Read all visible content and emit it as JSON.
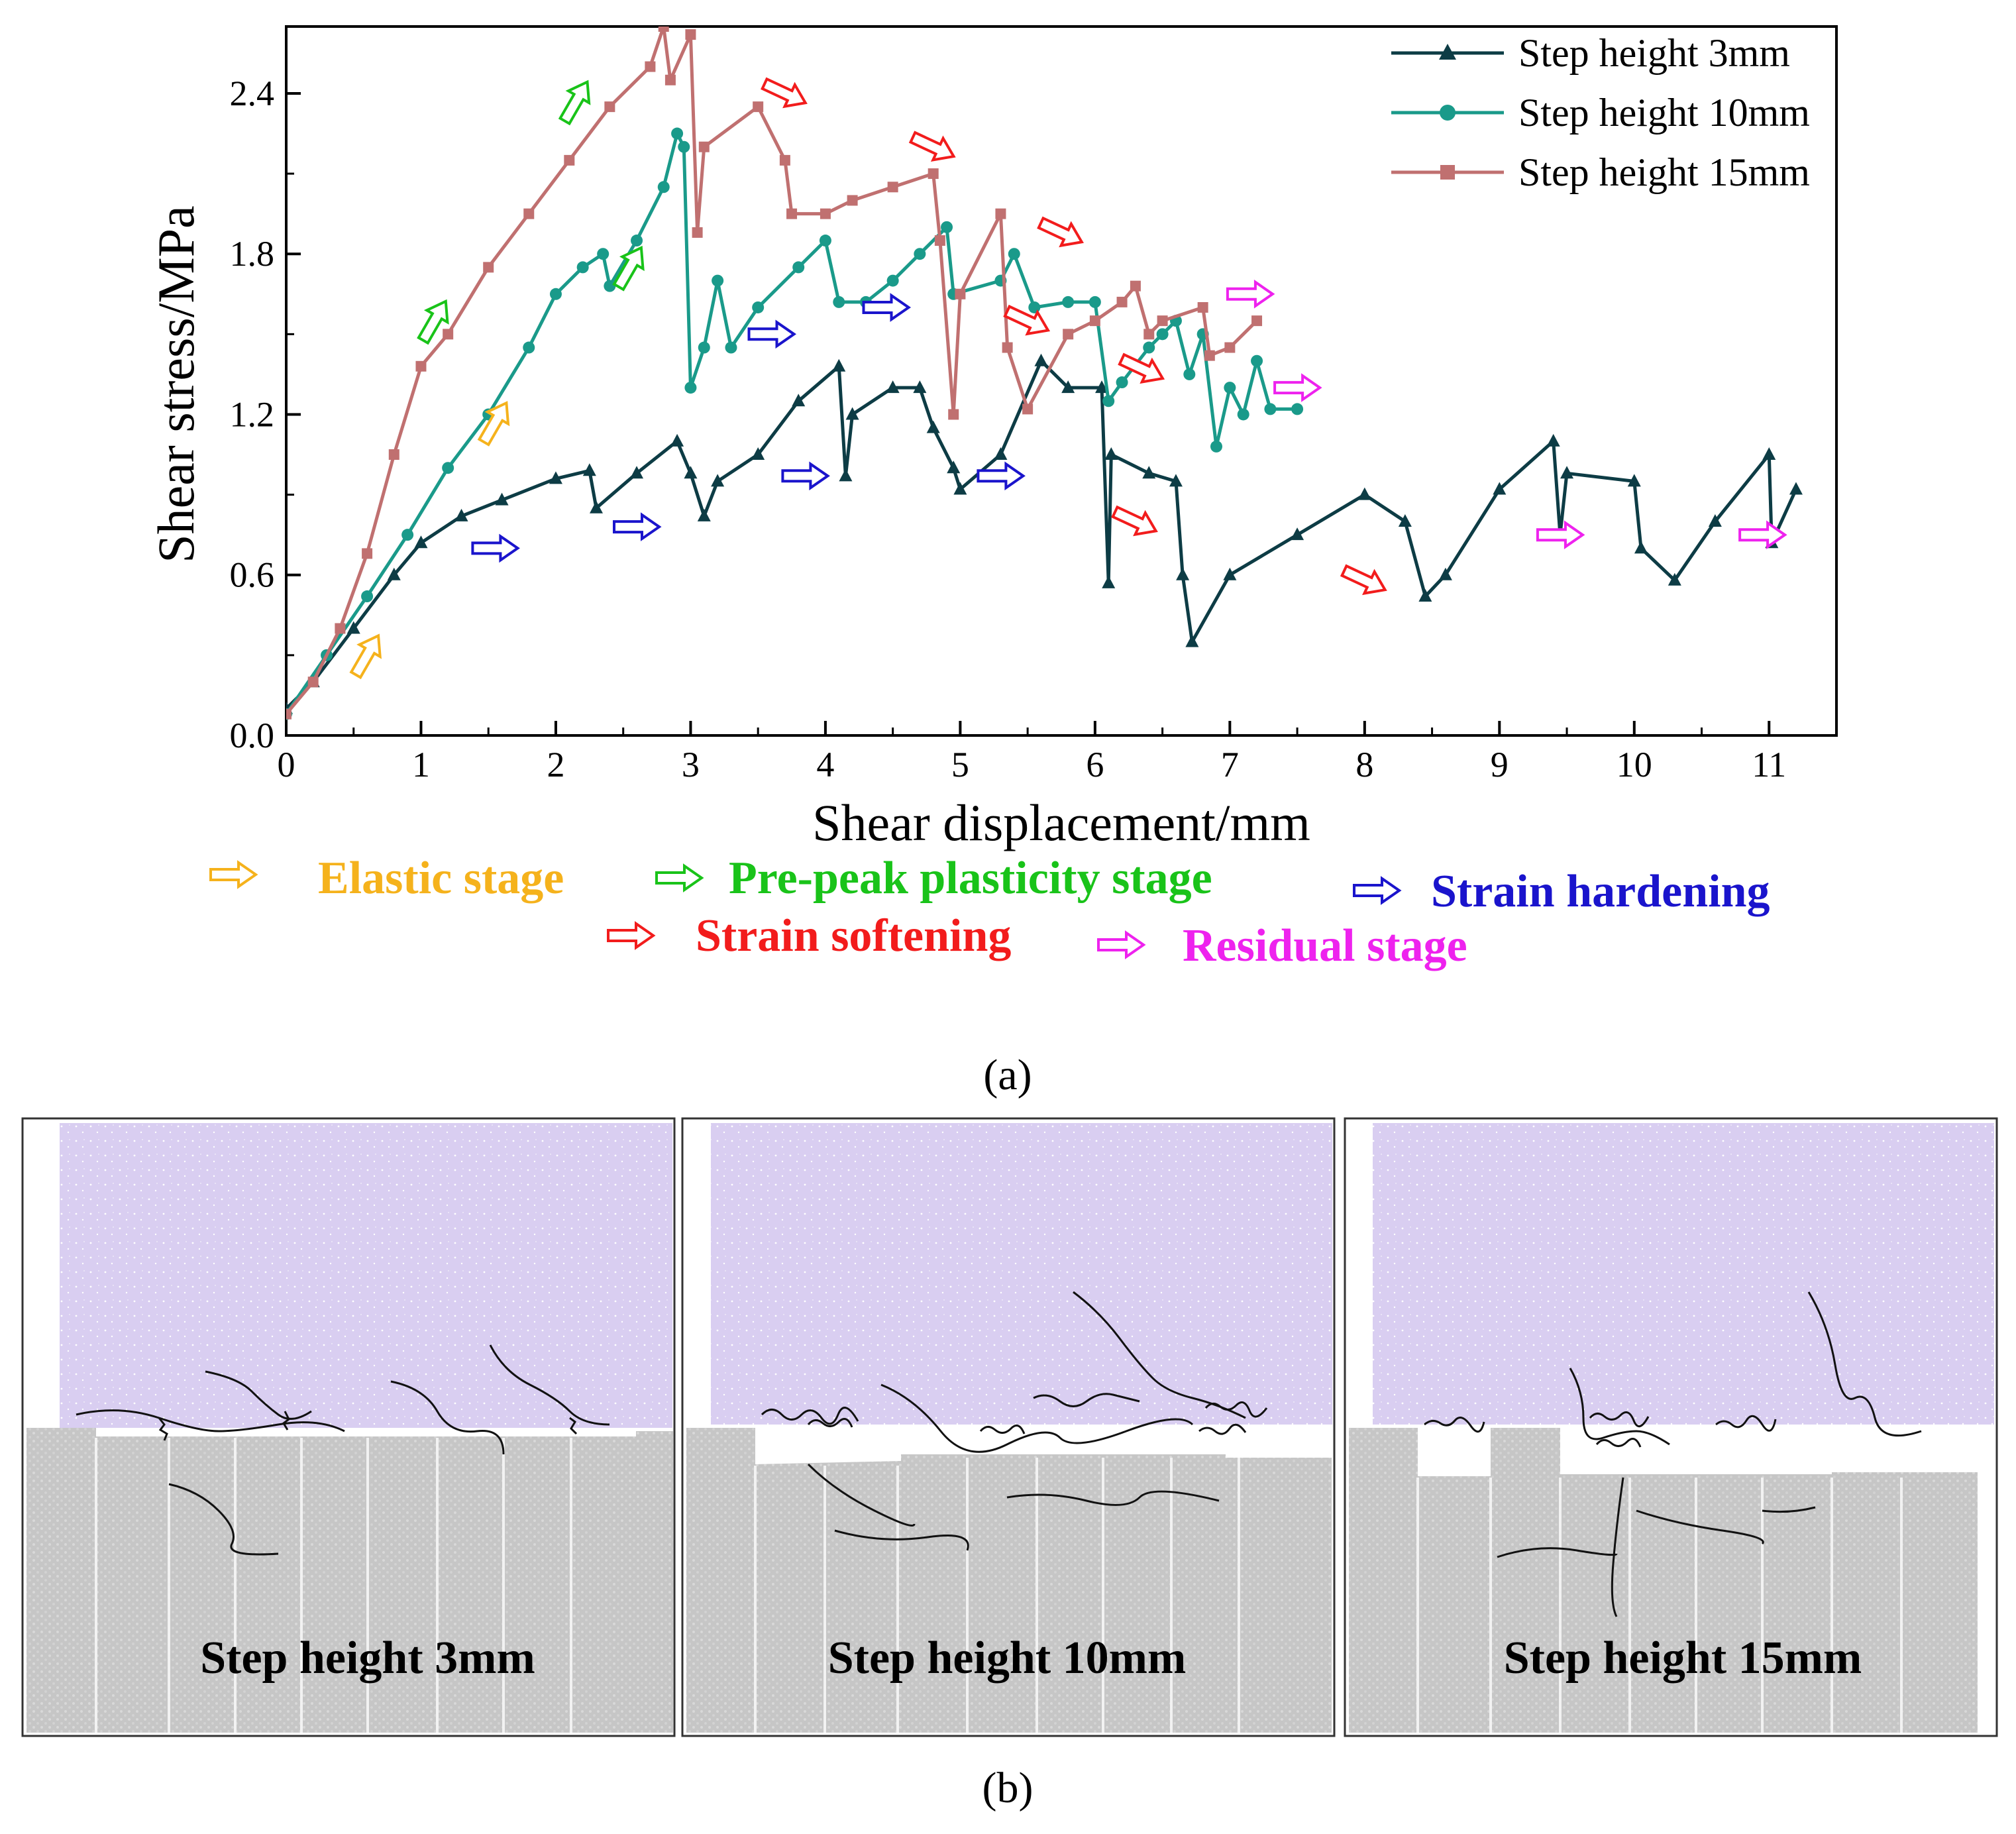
{
  "chart_data": {
    "type": "line",
    "title": "",
    "xlabel": "Shear displacement/mm",
    "ylabel": "Shear stress/MPa",
    "xlim": [
      0,
      11.5
    ],
    "ylim": [
      0,
      2.65
    ],
    "x_ticks": [
      0,
      1,
      2,
      3,
      4,
      5,
      6,
      7,
      8,
      9,
      10,
      11
    ],
    "x_tick_labels": [
      "0",
      "1",
      "2",
      "3",
      "4",
      "5",
      "6",
      "7",
      "8",
      "9",
      "10",
      "11"
    ],
    "y_ticks": [
      0,
      0.6,
      1.2,
      1.8,
      2.4
    ],
    "y_tick_labels": [
      "0.0",
      "0.6",
      "1.2",
      "1.8",
      "2.4"
    ],
    "legend_position": "top-right",
    "series": [
      {
        "name": "Step height 3mm",
        "color": "#0d3c45",
        "marker": "triangle",
        "points": [
          [
            0,
            0.1
          ],
          [
            0.2,
            0.2
          ],
          [
            0.5,
            0.4
          ],
          [
            0.8,
            0.6
          ],
          [
            1.0,
            0.72
          ],
          [
            1.3,
            0.82
          ],
          [
            1.6,
            0.88
          ],
          [
            2.0,
            0.96
          ],
          [
            2.25,
            0.99
          ],
          [
            2.3,
            0.85
          ],
          [
            2.6,
            0.98
          ],
          [
            2.9,
            1.1
          ],
          [
            3.0,
            0.98
          ],
          [
            3.1,
            0.82
          ],
          [
            3.2,
            0.95
          ],
          [
            3.5,
            1.05
          ],
          [
            3.8,
            1.25
          ],
          [
            4.1,
            1.38
          ],
          [
            4.15,
            0.97
          ],
          [
            4.2,
            1.2
          ],
          [
            4.5,
            1.3
          ],
          [
            4.7,
            1.3
          ],
          [
            4.8,
            1.15
          ],
          [
            4.95,
            1.0
          ],
          [
            5.0,
            0.92
          ],
          [
            5.3,
            1.05
          ],
          [
            5.6,
            1.4
          ],
          [
            5.8,
            1.3
          ],
          [
            6.05,
            1.3
          ],
          [
            6.1,
            0.57
          ],
          [
            6.12,
            1.05
          ],
          [
            6.4,
            0.98
          ],
          [
            6.6,
            0.95
          ],
          [
            6.65,
            0.6
          ],
          [
            6.72,
            0.35
          ],
          [
            7.0,
            0.6
          ],
          [
            7.5,
            0.75
          ],
          [
            8.0,
            0.9
          ],
          [
            8.3,
            0.8
          ],
          [
            8.45,
            0.52
          ],
          [
            8.6,
            0.6
          ],
          [
            9.0,
            0.92
          ],
          [
            9.4,
            1.1
          ],
          [
            9.45,
            0.75
          ],
          [
            9.5,
            0.98
          ],
          [
            10.0,
            0.95
          ],
          [
            10.05,
            0.7
          ],
          [
            10.3,
            0.58
          ],
          [
            10.6,
            0.8
          ],
          [
            11.0,
            1.05
          ],
          [
            11.02,
            0.72
          ],
          [
            11.2,
            0.92
          ]
        ]
      },
      {
        "name": "Step height 10mm",
        "color": "#1a9a8a",
        "marker": "circle",
        "points": [
          [
            0,
            0.08
          ],
          [
            0.3,
            0.3
          ],
          [
            0.6,
            0.52
          ],
          [
            0.9,
            0.75
          ],
          [
            1.2,
            1.0
          ],
          [
            1.5,
            1.2
          ],
          [
            1.8,
            1.45
          ],
          [
            2.0,
            1.65
          ],
          [
            2.2,
            1.75
          ],
          [
            2.35,
            1.8
          ],
          [
            2.4,
            1.68
          ],
          [
            2.6,
            1.85
          ],
          [
            2.8,
            2.05
          ],
          [
            2.9,
            2.25
          ],
          [
            2.95,
            2.2
          ],
          [
            3.0,
            1.3
          ],
          [
            3.1,
            1.45
          ],
          [
            3.2,
            1.7
          ],
          [
            3.3,
            1.45
          ],
          [
            3.5,
            1.6
          ],
          [
            3.8,
            1.75
          ],
          [
            4.0,
            1.85
          ],
          [
            4.1,
            1.62
          ],
          [
            4.3,
            1.62
          ],
          [
            4.5,
            1.7
          ],
          [
            4.7,
            1.8
          ],
          [
            4.9,
            1.9
          ],
          [
            4.95,
            1.65
          ],
          [
            5.3,
            1.7
          ],
          [
            5.4,
            1.8
          ],
          [
            5.55,
            1.6
          ],
          [
            5.8,
            1.62
          ],
          [
            6.0,
            1.62
          ],
          [
            6.1,
            1.25
          ],
          [
            6.2,
            1.32
          ],
          [
            6.4,
            1.45
          ],
          [
            6.5,
            1.5
          ],
          [
            6.6,
            1.55
          ],
          [
            6.7,
            1.35
          ],
          [
            6.8,
            1.5
          ],
          [
            6.9,
            1.08
          ],
          [
            7.0,
            1.3
          ],
          [
            7.1,
            1.2
          ],
          [
            7.2,
            1.4
          ],
          [
            7.3,
            1.22
          ],
          [
            7.5,
            1.22
          ]
        ]
      },
      {
        "name": "Step height 15mm",
        "color": "#c07070",
        "marker": "square",
        "points": [
          [
            0,
            0.08
          ],
          [
            0.2,
            0.2
          ],
          [
            0.4,
            0.4
          ],
          [
            0.6,
            0.68
          ],
          [
            0.8,
            1.05
          ],
          [
            1.0,
            1.38
          ],
          [
            1.2,
            1.5
          ],
          [
            1.5,
            1.75
          ],
          [
            1.8,
            1.95
          ],
          [
            2.1,
            2.15
          ],
          [
            2.4,
            2.35
          ],
          [
            2.7,
            2.5
          ],
          [
            2.8,
            2.65
          ],
          [
            2.85,
            2.45
          ],
          [
            3.0,
            2.62
          ],
          [
            3.05,
            1.88
          ],
          [
            3.1,
            2.2
          ],
          [
            3.5,
            2.35
          ],
          [
            3.7,
            2.15
          ],
          [
            3.75,
            1.95
          ],
          [
            4.0,
            1.95
          ],
          [
            4.2,
            2.0
          ],
          [
            4.5,
            2.05
          ],
          [
            4.8,
            2.1
          ],
          [
            4.85,
            1.85
          ],
          [
            4.95,
            1.2
          ],
          [
            5.0,
            1.65
          ],
          [
            5.3,
            1.95
          ],
          [
            5.35,
            1.45
          ],
          [
            5.5,
            1.22
          ],
          [
            5.8,
            1.5
          ],
          [
            6.0,
            1.55
          ],
          [
            6.2,
            1.62
          ],
          [
            6.3,
            1.68
          ],
          [
            6.4,
            1.5
          ],
          [
            6.5,
            1.55
          ],
          [
            6.8,
            1.6
          ],
          [
            6.85,
            1.42
          ],
          [
            7.0,
            1.45
          ],
          [
            7.2,
            1.55
          ]
        ]
      }
    ],
    "stage_annotations": [
      {
        "stage": "elastic",
        "x": 0.6,
        "y": 0.3,
        "dir": "up"
      },
      {
        "stage": "elastic",
        "x": 1.55,
        "y": 1.17,
        "dir": "up"
      },
      {
        "stage": "pre_peak",
        "x": 1.1,
        "y": 1.55,
        "dir": "up"
      },
      {
        "stage": "pre_peak",
        "x": 2.15,
        "y": 2.37,
        "dir": "up"
      },
      {
        "stage": "pre_peak",
        "x": 2.55,
        "y": 1.75,
        "dir": "up"
      },
      {
        "stage": "hardening",
        "x": 1.55,
        "y": 0.7,
        "dir": "right"
      },
      {
        "stage": "hardening",
        "x": 2.6,
        "y": 0.78,
        "dir": "right"
      },
      {
        "stage": "hardening",
        "x": 3.6,
        "y": 1.5,
        "dir": "right"
      },
      {
        "stage": "hardening",
        "x": 3.85,
        "y": 0.97,
        "dir": "right"
      },
      {
        "stage": "hardening",
        "x": 4.45,
        "y": 1.6,
        "dir": "right"
      },
      {
        "stage": "hardening",
        "x": 5.3,
        "y": 0.97,
        "dir": "right"
      },
      {
        "stage": "softening",
        "x": 3.7,
        "y": 2.4,
        "dir": "down"
      },
      {
        "stage": "softening",
        "x": 4.8,
        "y": 2.2,
        "dir": "down"
      },
      {
        "stage": "softening",
        "x": 5.75,
        "y": 1.88,
        "dir": "down"
      },
      {
        "stage": "softening",
        "x": 5.5,
        "y": 1.55,
        "dir": "down"
      },
      {
        "stage": "softening",
        "x": 6.35,
        "y": 1.37,
        "dir": "down"
      },
      {
        "stage": "softening",
        "x": 6.3,
        "y": 0.8,
        "dir": "down"
      },
      {
        "stage": "softening",
        "x": 8.0,
        "y": 0.58,
        "dir": "down"
      },
      {
        "stage": "residual",
        "x": 7.15,
        "y": 1.65,
        "dir": "right"
      },
      {
        "stage": "residual",
        "x": 7.5,
        "y": 1.3,
        "dir": "right"
      },
      {
        "stage": "residual",
        "x": 9.45,
        "y": 0.75,
        "dir": "right"
      },
      {
        "stage": "residual",
        "x": 10.95,
        "y": 0.75,
        "dir": "right"
      }
    ]
  },
  "stage_legend": {
    "elastic": {
      "label": "Elastic stage",
      "color": "#f5b21c"
    },
    "pre_peak": {
      "label": "Pre-peak plasticity stage",
      "color": "#19c319"
    },
    "hardening": {
      "label": "Strain hardening",
      "color": "#1a14cc"
    },
    "softening": {
      "label": "Strain softening",
      "color": "#f21c1c"
    },
    "residual": {
      "label": "Residual stage",
      "color": "#ee22ee"
    }
  },
  "captions": {
    "a": "(a)",
    "b": "(b)"
  },
  "panels": [
    {
      "label": "Step height 3mm",
      "step_height_mm": 3
    },
    {
      "label": "Step height 10mm",
      "step_height_mm": 10
    },
    {
      "label": "Step height 15mm",
      "step_height_mm": 15
    }
  ],
  "colors": {
    "upper_block": "#d9cef1",
    "lower_block": "#c9c9c9",
    "crack": "#111111"
  }
}
